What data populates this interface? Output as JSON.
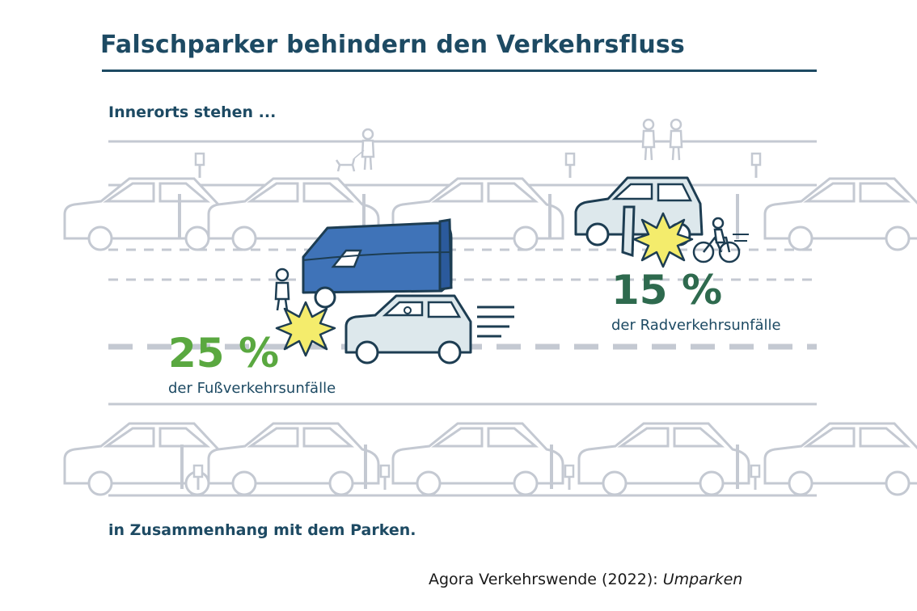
{
  "title": "Falschparker behindern den Verkehrsfluss",
  "intro": "Innerorts stehen ...",
  "outro": "in Zusammenhang mit dem Parken.",
  "stats": [
    {
      "value": "25 %",
      "label": "der Fußverkehrsunfälle",
      "color": "#5aa840"
    },
    {
      "value": "15 %",
      "label": "der Radverkehrsunfälle",
      "color": "#2e6a4e"
    }
  ],
  "source": {
    "author": "Agora Verkehrswende",
    "year": "(2022):",
    "publication": "Umparken"
  },
  "colors": {
    "title": "#1d4a63",
    "outline_gray": "#c4c9d2",
    "van_blue": "#3f73b8",
    "car_light": "#dde8ec",
    "collision_yellow": "#f4ec6c"
  }
}
